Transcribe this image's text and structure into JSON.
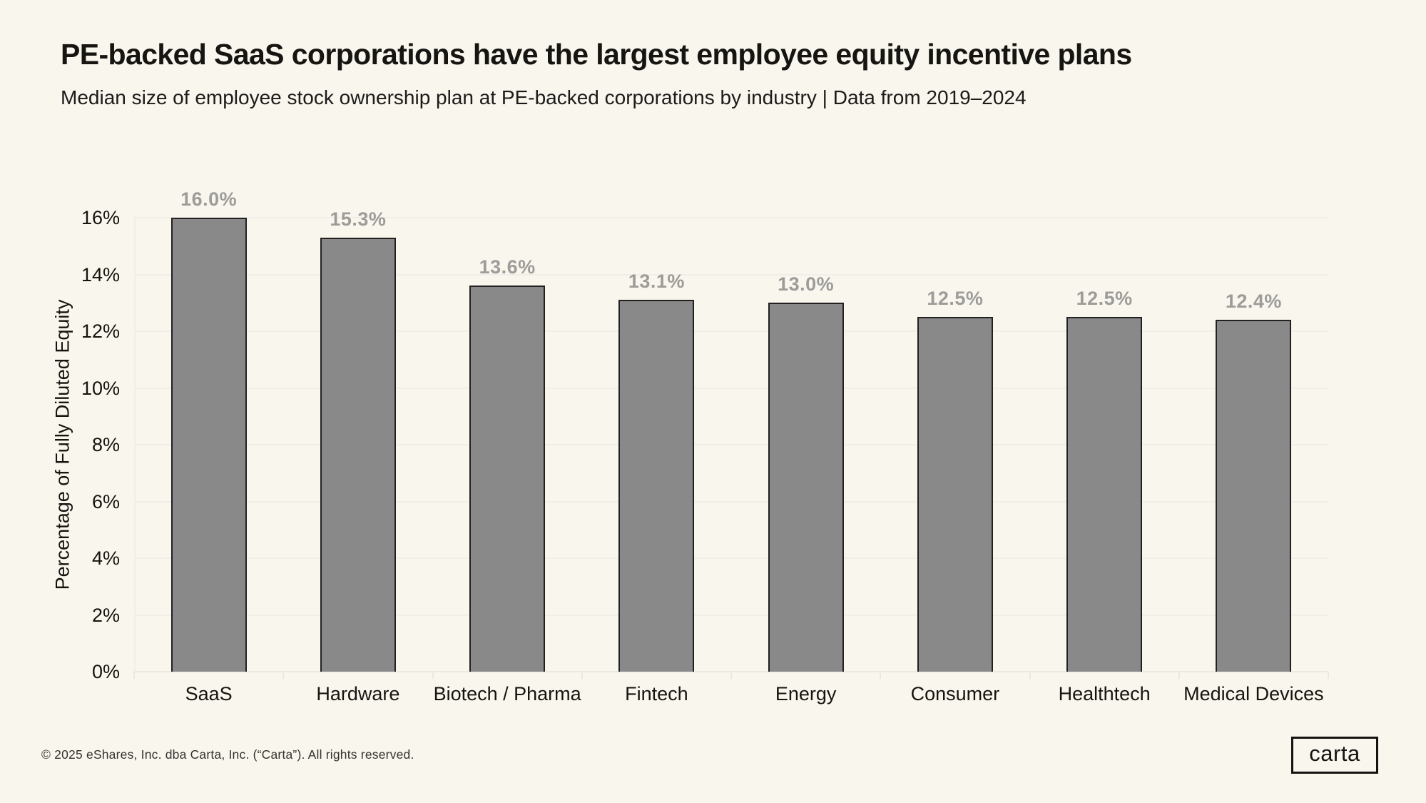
{
  "header": {
    "title": "PE-backed SaaS corporations have the largest employee equity incentive plans",
    "subtitle": "Median size of employee stock ownership plan at PE-backed corporations by industry | Data from 2019–2024"
  },
  "chart_data": {
    "type": "bar",
    "title": "PE-backed SaaS corporations have the largest employee equity incentive plans",
    "subtitle": "Median size of employee stock ownership plan at PE-backed corporations by industry | Data from 2019–2024",
    "categories": [
      "SaaS",
      "Hardware",
      "Biotech / Pharma",
      "Fintech",
      "Energy",
      "Consumer",
      "Healthtech",
      "Medical Devices"
    ],
    "values": [
      16.0,
      15.3,
      13.6,
      13.1,
      13.0,
      12.5,
      12.5,
      12.4
    ],
    "value_labels": [
      "16.0%",
      "15.3%",
      "13.6%",
      "13.1%",
      "13.0%",
      "12.5%",
      "12.5%",
      "12.4%"
    ],
    "xlabel": "",
    "ylabel": "Percentage of Fully Diluted Equity",
    "ylim": [
      0,
      16
    ],
    "ytick_step": 2,
    "ytick_labels": [
      "0%",
      "2%",
      "4%",
      "6%",
      "8%",
      "10%",
      "12%",
      "14%",
      "16%"
    ],
    "grid": "horizontal",
    "legend": "none"
  },
  "colors": {
    "background": "#f9f6ee",
    "bar_fill": "#898989",
    "bar_border": "#22211f",
    "value_label": "#9d9c99",
    "gridline": "#f0eee7",
    "text": "#15140f"
  },
  "footer": {
    "copyright": "© 2025 eShares, Inc. dba Carta, Inc. (“Carta”). All rights reserved.",
    "logo_text": "carta"
  }
}
